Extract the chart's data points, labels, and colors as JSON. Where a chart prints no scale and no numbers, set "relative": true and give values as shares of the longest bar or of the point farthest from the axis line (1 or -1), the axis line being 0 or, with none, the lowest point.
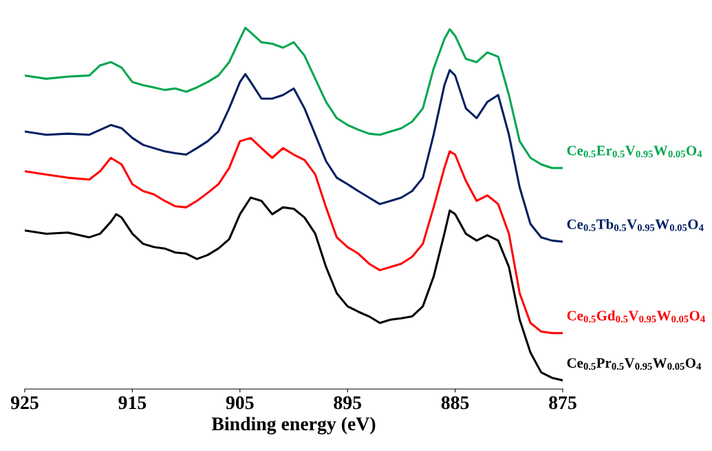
{
  "chart_data": {
    "type": "line",
    "relative": true,
    "xlabel": "Binding energy (eV)",
    "xlim": [
      925,
      875
    ],
    "xticks": [
      925,
      915,
      905,
      895,
      885,
      875
    ],
    "grid": false,
    "legend": false,
    "marker": "none",
    "line_style": "solid",
    "series": [
      {
        "name": "Ce$_{0.5}$Er$_{0.5}$V$_{0.95}$W$_{0.05}$O$_{4}$",
        "color": "#00a650",
        "x": [
          925,
          923,
          921,
          919,
          918,
          917,
          916,
          915,
          914,
          913,
          912,
          911,
          910,
          909,
          908,
          907,
          906,
          905,
          904.5,
          904,
          903,
          902,
          901,
          900,
          899,
          898,
          897,
          896,
          895,
          894,
          893,
          892,
          891,
          890,
          889,
          888,
          887,
          886,
          885.5,
          885,
          884,
          883,
          882,
          881,
          880,
          879,
          878,
          877,
          876,
          875
        ],
        "values": [
          0.868,
          0.859,
          0.865,
          0.868,
          0.896,
          0.905,
          0.89,
          0.85,
          0.841,
          0.835,
          0.828,
          0.832,
          0.823,
          0.835,
          0.85,
          0.868,
          0.905,
          0.969,
          1.0,
          0.987,
          0.96,
          0.956,
          0.945,
          0.96,
          0.923,
          0.859,
          0.795,
          0.75,
          0.731,
          0.718,
          0.707,
          0.704,
          0.713,
          0.722,
          0.74,
          0.777,
          0.887,
          0.969,
          0.996,
          0.978,
          0.914,
          0.905,
          0.932,
          0.92,
          0.814,
          0.686,
          0.64,
          0.622,
          0.612,
          0.612
        ]
      },
      {
        "name": "Ce$_{0.5}$Tb$_{0.5}$V$_{0.95}$W$_{0.05}$O$_{4}$",
        "color": "#002060",
        "x": [
          925,
          923,
          921,
          919,
          917,
          916,
          915,
          914,
          913,
          912,
          911,
          910,
          909,
          908,
          907,
          906,
          905,
          904.5,
          904,
          903,
          902,
          901,
          900,
          899,
          898,
          897,
          896,
          895,
          894,
          893,
          892,
          891,
          890,
          889,
          888,
          887,
          886,
          885.5,
          885,
          884,
          883,
          882,
          881,
          880,
          879,
          878,
          877,
          876,
          875
        ],
        "values": [
          0.713,
          0.704,
          0.707,
          0.704,
          0.731,
          0.722,
          0.695,
          0.676,
          0.667,
          0.658,
          0.653,
          0.649,
          0.667,
          0.686,
          0.713,
          0.777,
          0.85,
          0.872,
          0.85,
          0.804,
          0.804,
          0.814,
          0.832,
          0.777,
          0.704,
          0.631,
          0.585,
          0.567,
          0.548,
          0.53,
          0.512,
          0.521,
          0.53,
          0.548,
          0.585,
          0.704,
          0.841,
          0.883,
          0.868,
          0.777,
          0.75,
          0.795,
          0.814,
          0.704,
          0.558,
          0.457,
          0.42,
          0.411,
          0.408
        ]
      },
      {
        "name": "Ce$_{0.5}$Gd$_{0.5}$V$_{0.95}$W$_{0.05}$O$_{4}$",
        "color": "#ff0000",
        "x": [
          925,
          923,
          921,
          919,
          918,
          917,
          916,
          915,
          914,
          913,
          912,
          911,
          910,
          909,
          908,
          907,
          906,
          905,
          904,
          903,
          902,
          901,
          900,
          899,
          898,
          897,
          896,
          895,
          894,
          893,
          892,
          891,
          890,
          889,
          888,
          887,
          886,
          885.5,
          885,
          884,
          883,
          882,
          881,
          880,
          879,
          878,
          877,
          876,
          875
        ],
        "values": [
          0.603,
          0.594,
          0.585,
          0.58,
          0.603,
          0.64,
          0.622,
          0.567,
          0.548,
          0.539,
          0.521,
          0.506,
          0.503,
          0.521,
          0.543,
          0.567,
          0.612,
          0.686,
          0.695,
          0.667,
          0.64,
          0.667,
          0.649,
          0.634,
          0.594,
          0.503,
          0.42,
          0.393,
          0.375,
          0.347,
          0.329,
          0.338,
          0.347,
          0.366,
          0.402,
          0.503,
          0.612,
          0.658,
          0.649,
          0.576,
          0.521,
          0.536,
          0.512,
          0.43,
          0.265,
          0.183,
          0.159,
          0.155,
          0.155
        ]
      },
      {
        "name": "Ce$_{0.5}$Pr$_{0.5}$V$_{0.95}$W$_{0.05}$O$_{4}$",
        "color": "#000000",
        "x": [
          925,
          923,
          921,
          919,
          918,
          917,
          916.5,
          916,
          915,
          914,
          913,
          912,
          911,
          910,
          909,
          908,
          907,
          906,
          905,
          904,
          903,
          902,
          901,
          900,
          899,
          898,
          897,
          896,
          895,
          894,
          893,
          892,
          891,
          890,
          889,
          888,
          887,
          886,
          885.5,
          885,
          884,
          883,
          882,
          881,
          880,
          879,
          878,
          877,
          876,
          875
        ],
        "values": [
          0.439,
          0.43,
          0.433,
          0.42,
          0.43,
          0.463,
          0.484,
          0.475,
          0.43,
          0.402,
          0.393,
          0.389,
          0.378,
          0.375,
          0.36,
          0.371,
          0.389,
          0.415,
          0.484,
          0.53,
          0.521,
          0.484,
          0.503,
          0.499,
          0.475,
          0.43,
          0.338,
          0.265,
          0.229,
          0.214,
          0.201,
          0.183,
          0.192,
          0.196,
          0.201,
          0.229,
          0.311,
          0.43,
          0.494,
          0.484,
          0.43,
          0.411,
          0.426,
          0.411,
          0.338,
          0.192,
          0.101,
          0.046,
          0.031,
          0.024
        ]
      }
    ]
  }
}
